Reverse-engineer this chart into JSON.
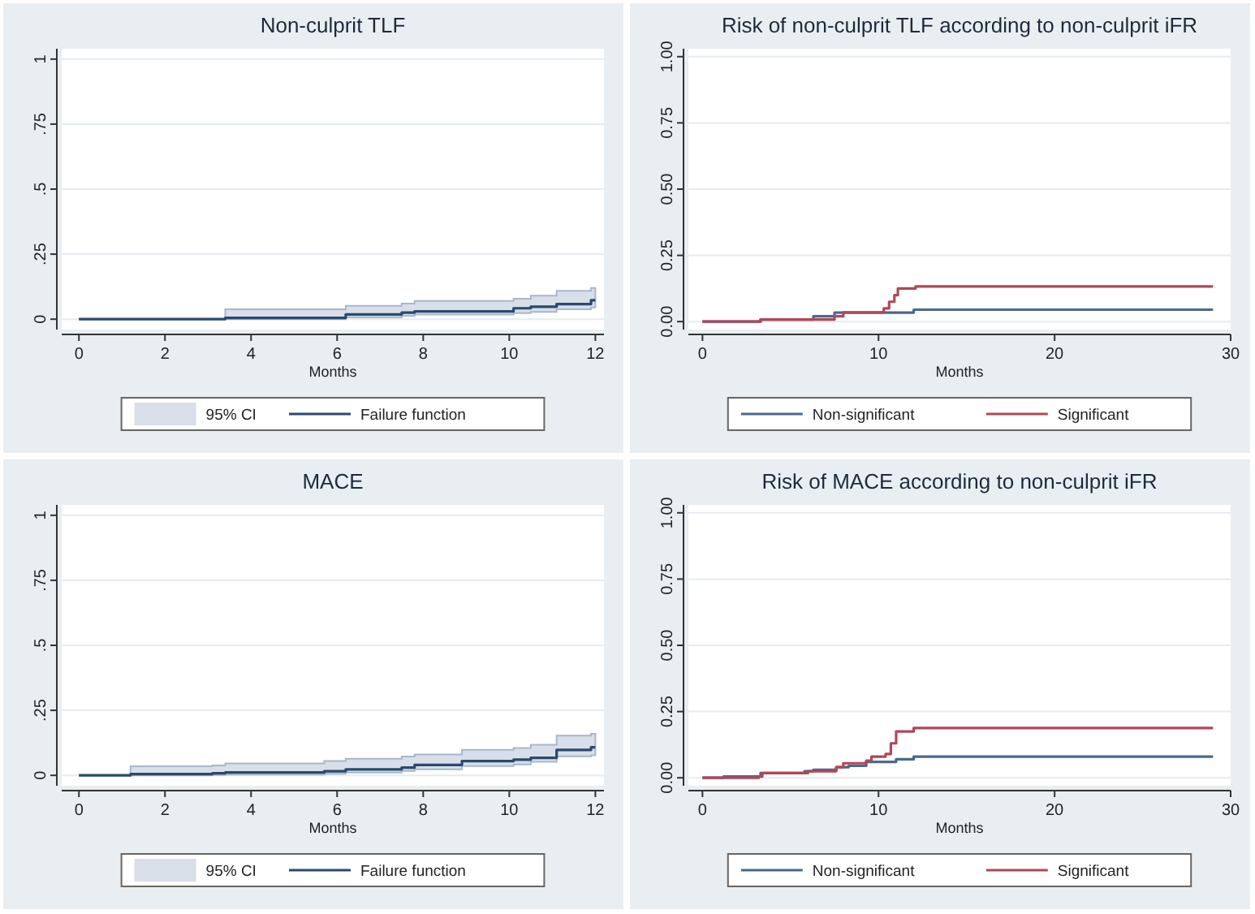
{
  "chart_data": [
    {
      "type": "step",
      "title": "Non-culprit TLF",
      "xlabel": "Months",
      "xlim": [
        -0.4,
        12.2
      ],
      "ylim": [
        -0.04,
        1.04
      ],
      "xticks": [
        0,
        2,
        4,
        6,
        8,
        10,
        12
      ],
      "yticks": [
        {
          "value": 0,
          "label": "0"
        },
        {
          "value": 0.25,
          "label": ".25"
        },
        {
          "value": 0.5,
          "label": ".5"
        },
        {
          "value": 0.75,
          "label": ".75"
        },
        {
          "value": 1,
          "label": "1"
        }
      ],
      "grid": "y",
      "legend": "bottom",
      "annotations": [
        "95% CI"
      ],
      "series": [
        {
          "name": "Failure function",
          "color": "#2a4a6e",
          "x": [
            0,
            3.4,
            6.2,
            7.5,
            7.8,
            10.1,
            10.5,
            11.1,
            11.9,
            12
          ],
          "values": [
            0,
            0.005,
            0.018,
            0.025,
            0.03,
            0.042,
            0.048,
            0.058,
            0.073,
            0.073
          ],
          "lower": [
            0,
            0,
            0.007,
            0.012,
            0.018,
            0.023,
            0.028,
            0.038,
            0.045,
            0.045
          ],
          "upper": [
            0,
            0.038,
            0.051,
            0.06,
            0.07,
            0.079,
            0.09,
            0.109,
            0.12,
            0.12
          ]
        }
      ]
    },
    {
      "type": "step",
      "title": "Risk of non-culprit TLF according to non-culprit iFR",
      "xlabel": "Months",
      "xlim": [
        -0.8,
        30
      ],
      "ylim": [
        -0.03,
        1.03
      ],
      "xticks": [
        0,
        10,
        20,
        30
      ],
      "yticks": [
        {
          "value": 0,
          "label": "0.00"
        },
        {
          "value": 0.25,
          "label": "0.25"
        },
        {
          "value": 0.5,
          "label": "0.50"
        },
        {
          "value": 0.75,
          "label": "0.75"
        },
        {
          "value": 1,
          "label": "1.00"
        }
      ],
      "grid": "y",
      "legend": "bottom",
      "series": [
        {
          "name": "Non-significant",
          "color": "#4a6a8c",
          "x": [
            0,
            3.3,
            6.3,
            7.5,
            12,
            29
          ],
          "values": [
            0,
            0.008,
            0.02,
            0.034,
            0.045,
            0.045
          ]
        },
        {
          "name": "Significant",
          "color": "#b0485a",
          "x": [
            0,
            3.3,
            7.5,
            8,
            10.3,
            10.6,
            10.9,
            11.1,
            12.1,
            29
          ],
          "values": [
            0,
            0.008,
            0.02,
            0.035,
            0.05,
            0.075,
            0.1,
            0.125,
            0.133,
            0.133
          ]
        }
      ]
    },
    {
      "type": "step",
      "title": "MACE",
      "xlabel": "Months",
      "xlim": [
        -0.4,
        12.2
      ],
      "ylim": [
        -0.04,
        1.04
      ],
      "xticks": [
        0,
        2,
        4,
        6,
        8,
        10,
        12
      ],
      "yticks": [
        {
          "value": 0,
          "label": "0"
        },
        {
          "value": 0.25,
          "label": ".25"
        },
        {
          "value": 0.5,
          "label": ".5"
        },
        {
          "value": 0.75,
          "label": ".75"
        },
        {
          "value": 1,
          "label": "1"
        }
      ],
      "grid": "y",
      "legend": "bottom",
      "annotations": [
        "95% CI"
      ],
      "series": [
        {
          "name": "Failure function",
          "color": "#2a4a6e",
          "x": [
            0,
            1.2,
            3.1,
            3.4,
            5.7,
            6.2,
            7.5,
            7.8,
            8.9,
            10.1,
            10.5,
            11.1,
            11.9,
            12
          ],
          "values": [
            0,
            0.005,
            0.008,
            0.011,
            0.016,
            0.023,
            0.03,
            0.04,
            0.055,
            0.06,
            0.067,
            0.098,
            0.108,
            0.108
          ],
          "lower": [
            0,
            0,
            0.001,
            0.003,
            0.006,
            0.011,
            0.017,
            0.023,
            0.036,
            0.042,
            0.052,
            0.073,
            0.077,
            0.077
          ],
          "upper": [
            0,
            0.035,
            0.038,
            0.046,
            0.055,
            0.064,
            0.072,
            0.08,
            0.098,
            0.105,
            0.118,
            0.153,
            0.16,
            0.16
          ]
        }
      ]
    },
    {
      "type": "step",
      "title": "Risk of MACE according to non-culprit iFR",
      "xlabel": "Months",
      "xlim": [
        -0.8,
        30
      ],
      "ylim": [
        -0.03,
        1.03
      ],
      "xticks": [
        0,
        10,
        20,
        30
      ],
      "yticks": [
        {
          "value": 0,
          "label": "0.00"
        },
        {
          "value": 0.25,
          "label": "0.25"
        },
        {
          "value": 0.5,
          "label": "0.50"
        },
        {
          "value": 0.75,
          "label": "0.75"
        },
        {
          "value": 1,
          "label": "1.00"
        }
      ],
      "grid": "y",
      "legend": "bottom",
      "series": [
        {
          "name": "Non-significant",
          "color": "#4a6a8c",
          "x": [
            0,
            1.2,
            3.3,
            5.8,
            6.3,
            7.6,
            8.3,
            9.3,
            11,
            12,
            29
          ],
          "values": [
            0,
            0.005,
            0.018,
            0.025,
            0.03,
            0.04,
            0.045,
            0.06,
            0.07,
            0.08,
            0.08
          ]
        },
        {
          "name": "Significant",
          "color": "#b0485a",
          "x": [
            0,
            3.2,
            3.4,
            6,
            7.6,
            8,
            9.3,
            9.6,
            10.4,
            10.7,
            11,
            12,
            29
          ],
          "values": [
            0,
            0.005,
            0.018,
            0.025,
            0.04,
            0.055,
            0.065,
            0.08,
            0.09,
            0.13,
            0.175,
            0.188,
            0.188
          ]
        }
      ]
    }
  ]
}
